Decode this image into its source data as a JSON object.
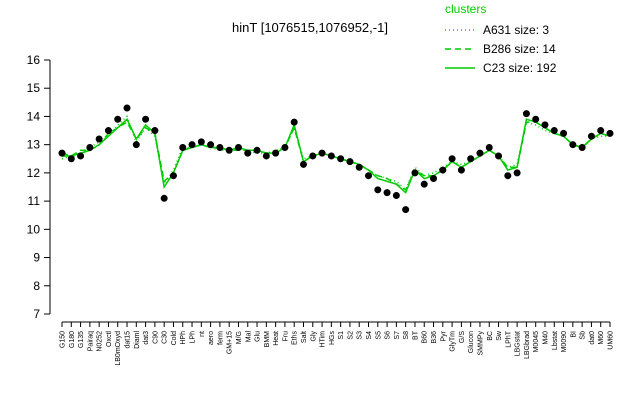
{
  "chart_data": {
    "type": "line",
    "title": "hinT [1076515,1076952,-1]",
    "legend_title": "clusters",
    "categories": [
      "G150",
      "G180",
      "G135",
      "Pairaq",
      "N0252",
      "Oxctl",
      "LB0mOxyd",
      "dat15",
      "Diaml",
      "dat3",
      "C90",
      "C30",
      "Cold",
      "HPh",
      "LPh",
      "nt",
      "aero",
      "ferm",
      "GM+15",
      "M/G",
      "Mal",
      "Glu",
      "BMM",
      "Heat",
      "Fru",
      "Eths",
      "Salt",
      "Gly",
      "HTim",
      "HGs",
      "S1",
      "S2",
      "S3",
      "S4",
      "S5",
      "S6",
      "S7",
      "S8",
      "BT",
      "B60",
      "B36",
      "Pyr",
      "GlyTm",
      "G/S",
      "Glucon",
      "SMMPy",
      "BC",
      "Sw",
      "LPhT",
      "LBGstat",
      "LBGbrad",
      "M0045",
      "M40",
      "Lbstat",
      "M0090",
      "BI",
      "Sb",
      "dat0",
      "M60",
      "UM60"
    ],
    "points": {
      "color": "#000000",
      "values": [
        12.7,
        12.5,
        12.6,
        12.9,
        13.2,
        13.5,
        13.9,
        14.3,
        13.0,
        13.9,
        13.5,
        11.1,
        11.9,
        12.9,
        13.0,
        13.1,
        13.0,
        12.9,
        12.8,
        12.9,
        12.7,
        12.8,
        12.6,
        12.7,
        12.9,
        13.8,
        12.3,
        12.6,
        12.7,
        12.6,
        12.5,
        12.4,
        12.2,
        11.9,
        11.4,
        11.3,
        11.2,
        10.7,
        12.0,
        11.6,
        11.8,
        12.1,
        12.5,
        12.1,
        12.5,
        12.7,
        12.9,
        12.6,
        11.9,
        12.0,
        14.1,
        13.9,
        13.7,
        13.5,
        13.4,
        13.0,
        12.9,
        13.3,
        13.5,
        13.4
      ]
    },
    "series": [
      {
        "name": "A631 size: 3",
        "color": "#00cc00",
        "line_style": "dotted",
        "values": [
          12.5,
          12.6,
          12.6,
          12.9,
          13.1,
          13.3,
          13.7,
          14.0,
          13.1,
          13.6,
          13.3,
          11.6,
          12.1,
          12.9,
          12.9,
          13.0,
          12.9,
          12.8,
          12.8,
          12.9,
          12.8,
          12.7,
          12.7,
          12.8,
          12.9,
          13.6,
          12.5,
          12.6,
          12.7,
          12.6,
          12.5,
          12.4,
          12.3,
          12.1,
          11.9,
          11.8,
          11.7,
          11.4,
          12.2,
          11.9,
          12.0,
          12.2,
          12.4,
          12.3,
          12.4,
          12.6,
          12.8,
          12.6,
          12.2,
          12.3,
          13.8,
          13.7,
          13.5,
          13.4,
          13.3,
          13.0,
          12.9,
          13.2,
          13.3,
          13.3
        ]
      },
      {
        "name": "B286 size: 14",
        "color": "#00cc00",
        "line_style": "dashed",
        "values": [
          12.7,
          12.6,
          12.8,
          12.8,
          13.0,
          13.4,
          13.6,
          13.8,
          13.2,
          13.6,
          13.4,
          11.7,
          12.0,
          12.8,
          12.9,
          13.0,
          12.9,
          12.9,
          12.8,
          12.8,
          12.8,
          12.8,
          12.7,
          12.7,
          12.9,
          13.6,
          12.4,
          12.6,
          12.7,
          12.6,
          12.5,
          12.4,
          12.3,
          12.1,
          11.9,
          11.8,
          11.6,
          11.4,
          12.1,
          11.9,
          11.9,
          12.1,
          12.4,
          12.2,
          12.4,
          12.6,
          12.8,
          12.6,
          12.2,
          12.2,
          13.8,
          13.8,
          13.6,
          13.4,
          13.3,
          13.0,
          12.9,
          13.2,
          13.4,
          13.3
        ]
      },
      {
        "name": "C23 size: 192",
        "color": "#00cc00",
        "line_style": "solid",
        "values": [
          12.6,
          12.6,
          12.7,
          12.8,
          13.0,
          13.3,
          13.6,
          13.9,
          13.2,
          13.7,
          13.4,
          11.5,
          12.0,
          12.8,
          12.9,
          13.0,
          12.9,
          12.9,
          12.8,
          12.9,
          12.8,
          12.8,
          12.7,
          12.7,
          12.9,
          13.7,
          12.4,
          12.6,
          12.7,
          12.6,
          12.5,
          12.4,
          12.3,
          12.1,
          11.8,
          11.7,
          11.6,
          11.3,
          12.1,
          11.8,
          11.9,
          12.1,
          12.4,
          12.2,
          12.4,
          12.6,
          12.8,
          12.6,
          12.1,
          12.2,
          13.9,
          13.8,
          13.6,
          13.4,
          13.3,
          13.0,
          12.9,
          13.2,
          13.4,
          13.3
        ]
      }
    ],
    "ylim": [
      7,
      16
    ],
    "yticks": [
      7,
      8,
      9,
      10,
      11,
      12,
      13,
      14,
      15,
      16
    ]
  }
}
